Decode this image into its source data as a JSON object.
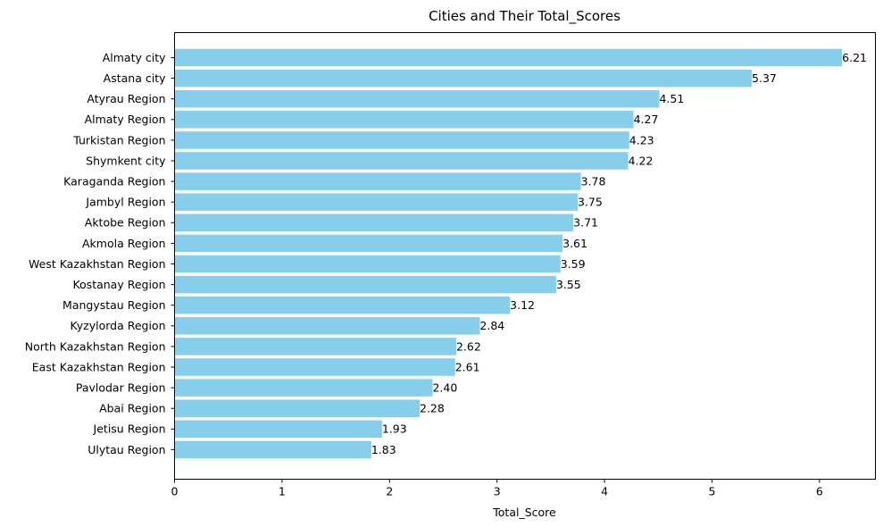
{
  "chart_data": {
    "type": "bar",
    "orientation": "horizontal",
    "title": "Cities and Their Total_Scores",
    "xlabel": "Total_Score",
    "ylabel": "",
    "xlim": [
      0,
      6.52
    ],
    "x_ticks": [
      0,
      1,
      2,
      3,
      4,
      5,
      6
    ],
    "x_tick_labels": [
      "0",
      "1",
      "2",
      "3",
      "4",
      "5",
      "6"
    ],
    "bar_color": "#87CEEB",
    "grid": false,
    "legend": "none",
    "categories": [
      "Almaty city",
      "Astana city",
      "Atyrau Region",
      "Almaty Region",
      "Turkistan Region",
      "Shymkent city",
      "Karaganda Region",
      "Jambyl Region",
      "Aktobe Region",
      "Akmola Region",
      "West Kazakhstan Region",
      "Kostanay Region",
      "Mangystau Region",
      "Kyzylorda Region",
      "North Kazakhstan Region",
      "East Kazakhstan Region",
      "Pavlodar Region",
      "Abai Region",
      "Jetisu Region",
      "Ulytau Region"
    ],
    "values": [
      6.21,
      5.37,
      4.51,
      4.27,
      4.23,
      4.22,
      3.78,
      3.75,
      3.71,
      3.61,
      3.59,
      3.55,
      3.12,
      2.84,
      2.62,
      2.61,
      2.4,
      2.28,
      1.93,
      1.83
    ],
    "value_labels": [
      "6.21",
      "5.37",
      "4.51",
      "4.27",
      "4.23",
      "4.22",
      "3.78",
      "3.75",
      "3.71",
      "3.61",
      "3.59",
      "3.55",
      "3.12",
      "2.84",
      "2.62",
      "2.61",
      "2.40",
      "2.28",
      "1.93",
      "1.83"
    ]
  }
}
